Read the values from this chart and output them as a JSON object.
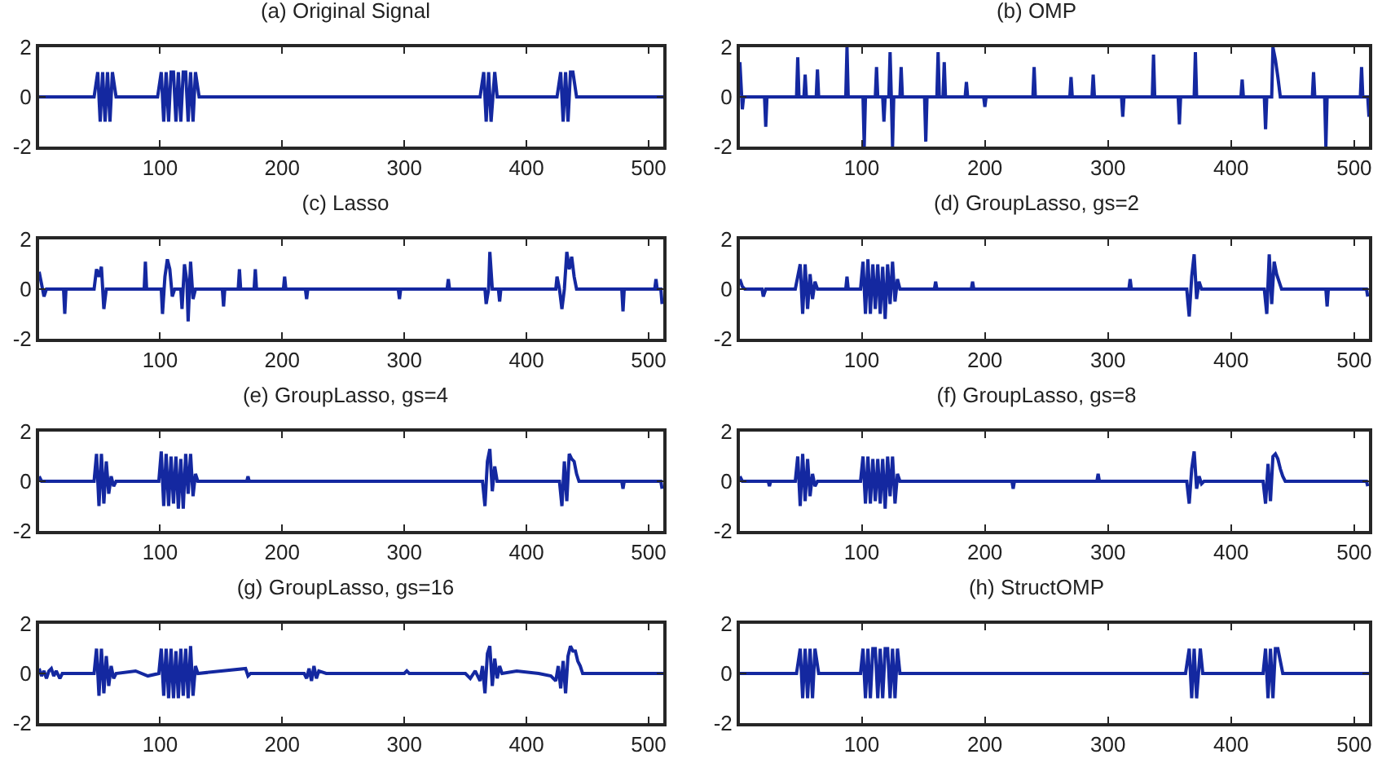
{
  "chart_data": [
    {
      "type": "line",
      "title": "(a) Original Signal",
      "xlim": [
        1,
        512
      ],
      "xticks": [
        100,
        200,
        300,
        400,
        500
      ],
      "ylim": [
        -2,
        2
      ],
      "yticks": [
        -2,
        0,
        2
      ],
      "series": [
        {
          "color": "#1428a0",
          "x": [
            1,
            46,
            49,
            51,
            53,
            55,
            57,
            59,
            61,
            64,
            98,
            101,
            103,
            105,
            107,
            109,
            111,
            113,
            115,
            117,
            119,
            121,
            123,
            125,
            127,
            129,
            132,
            362,
            365,
            367,
            369,
            371,
            374,
            376,
            425,
            428,
            430,
            432,
            434,
            436,
            438,
            441,
            512
          ],
          "values": [
            0,
            0,
            1,
            -1,
            1,
            -1,
            1,
            -1,
            1,
            0,
            0,
            1,
            -1,
            1,
            -1,
            1,
            1,
            -1,
            1,
            -1,
            1,
            1,
            -1,
            1,
            -1,
            1,
            0,
            0,
            1,
            -1,
            1,
            -1,
            1,
            0,
            0,
            1,
            -1,
            1,
            -1,
            1,
            1,
            0,
            0
          ]
        }
      ]
    },
    {
      "type": "line",
      "title": "(b) OMP",
      "xlim": [
        1,
        512
      ],
      "xticks": [
        100,
        200,
        300,
        400,
        500
      ],
      "ylim": [
        -2,
        2
      ],
      "yticks": [
        -2,
        0,
        2
      ],
      "series": [
        {
          "color": "#1428a0",
          "x": [
            1,
            3,
            4,
            21,
            22,
            23,
            47,
            48,
            49,
            53,
            54,
            55,
            63,
            64,
            65,
            87,
            88,
            89,
            101,
            102,
            103,
            111,
            112,
            113,
            117,
            118,
            119,
            122,
            123,
            124,
            125,
            126,
            131,
            132,
            133,
            151,
            152,
            153,
            161,
            162,
            163,
            166,
            167,
            168,
            184,
            185,
            186,
            199,
            200,
            201,
            239,
            240,
            241,
            269,
            270,
            271,
            287,
            288,
            289,
            311,
            312,
            313,
            336,
            337,
            338,
            357,
            358,
            359,
            370,
            371,
            372,
            408,
            409,
            410,
            427,
            428,
            429,
            433,
            434,
            436,
            438,
            440,
            466,
            467,
            468,
            476,
            477,
            478,
            505,
            506,
            507,
            511,
            512
          ],
          "values": [
            1.4,
            -0.5,
            0,
            0,
            -1.2,
            0,
            0,
            1.6,
            0,
            0,
            0.9,
            0,
            0,
            1.1,
            0,
            0,
            2,
            0,
            0,
            -2,
            0,
            0,
            1.2,
            0,
            0,
            -1,
            0,
            0,
            1.8,
            0,
            -2,
            0,
            0,
            1.2,
            0,
            0,
            -1.8,
            0,
            0,
            1.8,
            0,
            0,
            1.4,
            0,
            0,
            0.6,
            0,
            0,
            -0.4,
            0,
            0,
            1.2,
            0,
            0,
            0.8,
            0,
            0,
            0.9,
            0,
            0,
            -0.8,
            0,
            0,
            1.7,
            0,
            0,
            -1.1,
            0,
            0,
            1.8,
            0,
            0,
            0.7,
            0,
            0,
            -1.3,
            0,
            0,
            2,
            1.5,
            0.8,
            0,
            0,
            1,
            0,
            0,
            -2,
            0,
            0,
            1.2,
            0,
            0,
            -0.8
          ]
        }
      ]
    },
    {
      "type": "line",
      "title": "(c) Lasso",
      "xlim": [
        1,
        512
      ],
      "xticks": [
        100,
        200,
        300,
        400,
        500
      ],
      "ylim": [
        -2,
        2
      ],
      "yticks": [
        -2,
        0,
        2
      ],
      "series": [
        {
          "color": "#1428a0",
          "x": [
            1,
            3,
            5,
            7,
            21,
            22,
            23,
            46,
            48,
            50,
            52,
            54,
            56,
            87,
            88,
            89,
            101,
            102,
            104,
            106,
            108,
            110,
            112,
            117,
            118,
            120,
            122,
            123,
            125,
            127,
            129,
            151,
            152,
            153,
            164,
            165,
            166,
            177,
            178,
            179,
            201,
            202,
            203,
            219,
            220,
            221,
            295,
            296,
            297,
            335,
            336,
            337,
            366,
            367,
            369,
            370,
            372,
            377,
            378,
            379,
            424,
            425,
            427,
            429,
            431,
            433,
            435,
            437,
            439,
            441,
            478,
            479,
            480,
            505,
            506,
            507,
            510,
            511
          ],
          "values": [
            0.7,
            0.2,
            -0.3,
            0,
            0,
            -1,
            0,
            0,
            0.8,
            0.5,
            0.9,
            -0.8,
            0,
            0,
            1.1,
            0,
            0,
            -1,
            0.5,
            1.2,
            0.8,
            -0.3,
            0,
            0,
            -0.8,
            1,
            0.3,
            -1.3,
            1.1,
            -0.4,
            0,
            0,
            -0.7,
            0,
            0,
            0.8,
            0,
            0,
            0.8,
            0,
            0,
            0.5,
            0,
            0,
            -0.4,
            0,
            0,
            -0.4,
            0,
            0,
            0.4,
            0,
            0,
            -0.6,
            0,
            1.5,
            0,
            0,
            -0.5,
            0,
            0,
            0.5,
            0,
            -0.8,
            0,
            1.5,
            0.8,
            1.3,
            0.5,
            0,
            0,
            -0.9,
            0,
            0,
            0.4,
            0,
            0,
            -0.6
          ]
        }
      ]
    },
    {
      "type": "line",
      "title": "(d) GroupLasso, gs=2",
      "xlim": [
        1,
        512
      ],
      "xticks": [
        100,
        200,
        300,
        400,
        500
      ],
      "ylim": [
        -2,
        2
      ],
      "yticks": [
        -2,
        0,
        2
      ],
      "series": [
        {
          "color": "#1428a0",
          "x": [
            1,
            3,
            5,
            19,
            20,
            22,
            46,
            48,
            50,
            52,
            54,
            56,
            58,
            60,
            62,
            64,
            87,
            88,
            89,
            99,
            101,
            103,
            105,
            107,
            109,
            111,
            113,
            115,
            117,
            119,
            121,
            123,
            125,
            127,
            129,
            131,
            159,
            160,
            161,
            189,
            190,
            191,
            317,
            318,
            319,
            364,
            366,
            368,
            370,
            372,
            374,
            376,
            427,
            429,
            431,
            433,
            435,
            437,
            439,
            441,
            477,
            478,
            479,
            510,
            511
          ],
          "values": [
            0.4,
            0.1,
            0,
            0,
            -0.3,
            0,
            0,
            0.5,
            1,
            -1,
            1,
            -0.8,
            0.6,
            -0.4,
            0.3,
            0,
            0,
            0.5,
            0,
            0,
            1.1,
            -1,
            1.2,
            -1,
            1,
            -0.8,
            1,
            -1,
            0.9,
            -1.2,
            1,
            -0.6,
            1.1,
            -0.5,
            0.4,
            0,
            0,
            0.3,
            0,
            0,
            0.3,
            0,
            0,
            0.4,
            0,
            0,
            -1.1,
            0.5,
            1.4,
            -0.4,
            0.3,
            0,
            0,
            -1,
            1.4,
            -0.6,
            1.1,
            0.6,
            0.3,
            0,
            0,
            -0.7,
            0,
            0,
            -0.3
          ]
        }
      ]
    },
    {
      "type": "line",
      "title": "(e) GroupLasso, gs=4",
      "xlim": [
        1,
        512
      ],
      "xticks": [
        100,
        200,
        300,
        400,
        500
      ],
      "ylim": [
        -2,
        2
      ],
      "yticks": [
        -2,
        0,
        2
      ],
      "series": [
        {
          "color": "#1428a0",
          "x": [
            1,
            3,
            5,
            46,
            48,
            50,
            52,
            54,
            56,
            58,
            60,
            62,
            64,
            99,
            101,
            103,
            105,
            107,
            109,
            111,
            113,
            115,
            117,
            119,
            121,
            123,
            125,
            127,
            129,
            131,
            171,
            172,
            173,
            364,
            366,
            368,
            370,
            372,
            374,
            376,
            427,
            429,
            431,
            433,
            435,
            437,
            439,
            441,
            443,
            478,
            479,
            480,
            510,
            511
          ],
          "values": [
            0.2,
            0,
            0,
            0,
            1.1,
            -1,
            1.1,
            -0.9,
            0.8,
            -0.5,
            0.2,
            -0.2,
            0,
            0,
            1.2,
            -1,
            1.1,
            -1,
            1,
            -0.9,
            1,
            -1.1,
            0.9,
            -1.1,
            1.1,
            -0.5,
            1.1,
            -0.6,
            0.3,
            0,
            0,
            0.2,
            0,
            0,
            -1,
            0.8,
            1.3,
            -0.4,
            0.6,
            0,
            0,
            -1,
            0.8,
            -0.8,
            1.1,
            0.9,
            0.8,
            0.3,
            0,
            0,
            -0.3,
            0,
            0,
            -0.3
          ]
        }
      ]
    },
    {
      "type": "line",
      "title": "(f) GroupLasso, gs=8",
      "xlim": [
        1,
        512
      ],
      "xticks": [
        100,
        200,
        300,
        400,
        500
      ],
      "ylim": [
        -2,
        2
      ],
      "yticks": [
        -2,
        0,
        2
      ],
      "series": [
        {
          "color": "#1428a0",
          "x": [
            1,
            3,
            5,
            24,
            25,
            26,
            46,
            48,
            50,
            52,
            54,
            56,
            58,
            60,
            62,
            64,
            99,
            101,
            103,
            105,
            107,
            109,
            111,
            113,
            115,
            117,
            119,
            121,
            123,
            125,
            127,
            129,
            131,
            222,
            223,
            224,
            291,
            292,
            293,
            364,
            366,
            368,
            370,
            372,
            374,
            376,
            378,
            426,
            428,
            430,
            432,
            434,
            436,
            438,
            440,
            442,
            444,
            510,
            511
          ],
          "values": [
            0.2,
            0,
            0,
            0,
            -0.2,
            0,
            0,
            1,
            -1,
            1.1,
            -0.8,
            0.9,
            -0.6,
            0.3,
            -0.2,
            0,
            0,
            1,
            -0.9,
            1,
            -0.9,
            0.9,
            -0.8,
            0.9,
            -0.9,
            0.9,
            -1.1,
            1,
            -0.6,
            1,
            -0.9,
            0.3,
            0,
            0,
            -0.3,
            0,
            0,
            0.3,
            0,
            0,
            -0.9,
            0.5,
            1.2,
            -0.3,
            0.2,
            -0.1,
            0,
            0,
            -0.9,
            0.7,
            -0.8,
            1,
            1.1,
            0.9,
            0.5,
            0.2,
            0,
            0,
            -0.2
          ]
        }
      ]
    },
    {
      "type": "line",
      "title": "(g) GroupLasso, gs=16",
      "xlim": [
        1,
        512
      ],
      "xticks": [
        100,
        200,
        300,
        400,
        500
      ],
      "ylim": [
        -2,
        2
      ],
      "yticks": [
        -2,
        0,
        2
      ],
      "series": [
        {
          "color": "#1428a0",
          "x": [
            1,
            3,
            5,
            7,
            9,
            11,
            13,
            15,
            18,
            20,
            46,
            48,
            50,
            52,
            54,
            56,
            58,
            60,
            62,
            64,
            80,
            90,
            99,
            101,
            103,
            105,
            107,
            109,
            111,
            113,
            115,
            117,
            119,
            121,
            123,
            125,
            127,
            129,
            131,
            170,
            172,
            174,
            218,
            220,
            222,
            224,
            226,
            228,
            230,
            236,
            300,
            302,
            304,
            350,
            354,
            358,
            362,
            364,
            366,
            368,
            370,
            372,
            374,
            376,
            378,
            380,
            392,
            410,
            420,
            424,
            426,
            428,
            430,
            432,
            434,
            436,
            438,
            440,
            442,
            444,
            446,
            512
          ],
          "values": [
            0.2,
            -0.1,
            0.1,
            -0.2,
            0.1,
            0.2,
            -0.1,
            0.1,
            -0.2,
            0,
            0,
            1,
            -0.9,
            1,
            -0.8,
            0.7,
            -0.5,
            0.3,
            -0.2,
            0,
            0.1,
            -0.1,
            0,
            1,
            -0.9,
            1,
            -1,
            1,
            -1,
            0.9,
            -1,
            1,
            -0.9,
            1,
            -1,
            1.1,
            -0.9,
            0.3,
            0,
            0.2,
            -0.1,
            0,
            0,
            -0.2,
            0.2,
            -0.3,
            0.3,
            -0.2,
            0.1,
            0,
            0,
            0.1,
            0,
            0,
            -0.2,
            0.1,
            -0.3,
            0.3,
            -0.8,
            0.8,
            1.1,
            -0.5,
            0.6,
            -0.2,
            0.3,
            0,
            0.1,
            0,
            -0.1,
            -0.3,
            0.3,
            -0.6,
            0.5,
            -0.8,
            0.7,
            1.1,
            0.9,
            0.9,
            0.5,
            0.3,
            0,
            0
          ]
        }
      ]
    },
    {
      "type": "line",
      "title": "(h) StructOMP",
      "xlim": [
        1,
        512
      ],
      "xticks": [
        100,
        200,
        300,
        400,
        500
      ],
      "ylim": [
        -2,
        2
      ],
      "yticks": [
        -2,
        0,
        2
      ],
      "series": [
        {
          "color": "#1428a0",
          "x": [
            1,
            47,
            50,
            52,
            54,
            56,
            58,
            60,
            62,
            65,
            99,
            101,
            103,
            105,
            107,
            109,
            111,
            113,
            115,
            117,
            119,
            121,
            123,
            125,
            127,
            129,
            131,
            363,
            366,
            368,
            370,
            372,
            375,
            377,
            426,
            428,
            430,
            432,
            434,
            436,
            438,
            442,
            512
          ],
          "values": [
            0,
            0,
            1,
            -1,
            1,
            -1,
            1,
            -1,
            1,
            0,
            0,
            1,
            -1,
            1,
            -1,
            1,
            1,
            -1,
            1,
            -1,
            1,
            1,
            -1,
            1,
            -1,
            1,
            0,
            0,
            1,
            -1,
            1,
            -1,
            1,
            0,
            0,
            1,
            -1,
            1,
            -1,
            1,
            1,
            0,
            0
          ]
        }
      ]
    }
  ]
}
